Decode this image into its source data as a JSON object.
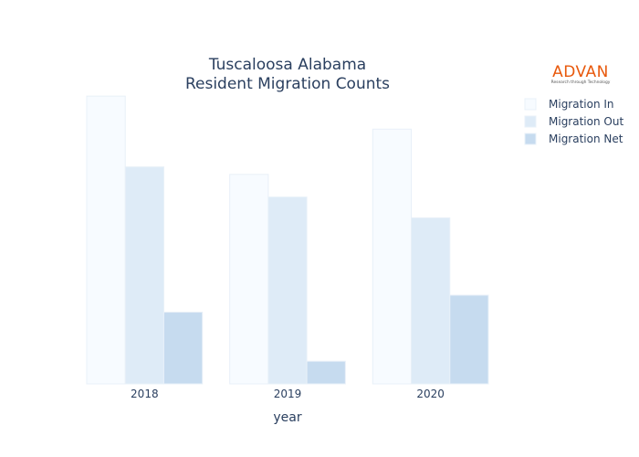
{
  "chart_data": {
    "type": "bar",
    "title_line1": "Tuscaloosa Alabama",
    "title_line2": "Resident Migration Counts",
    "xlabel": "year",
    "ylabel": "",
    "categories": [
      "2018",
      "2019",
      "2020"
    ],
    "series": [
      {
        "name": "Migration In",
        "values": [
          3050,
          2220,
          2700
        ],
        "color": "#f7fbff"
      },
      {
        "name": "Migration Out",
        "values": [
          2300,
          1980,
          1760
        ],
        "color": "#deebf7"
      },
      {
        "name": "Migration Net",
        "values": [
          760,
          240,
          940
        ],
        "color": "#c6dbef"
      }
    ],
    "ylim": [
      0,
      3100
    ],
    "y_axis_visible": false,
    "grid": false,
    "legend_position": "top-right"
  },
  "logo": {
    "brand": "ADVAN",
    "tagline": "Research through Technology",
    "color": "#e8590c"
  },
  "colors": {
    "text": "#2a3f5f",
    "bar_outline": "#e8f0f8"
  }
}
